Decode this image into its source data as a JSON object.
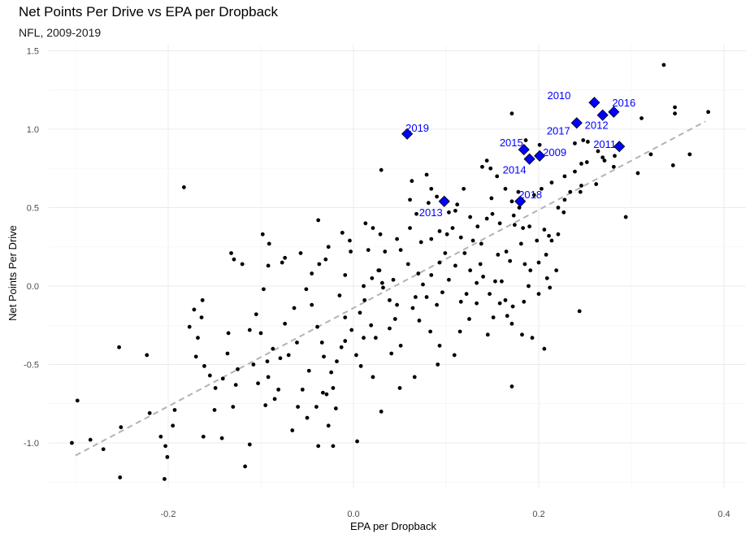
{
  "chart_data": {
    "type": "scatter",
    "title": "Net Points Per Drive vs EPA per Dropback",
    "subtitle": "NFL, 2009-2019",
    "xlabel": "EPA per Dropback",
    "ylabel": "Net Points Per Drive",
    "xlim": [
      -0.33,
      0.42
    ],
    "ylim": [
      -1.28,
      1.53
    ],
    "xticks": [
      -0.2,
      0.0,
      0.2,
      0.4
    ],
    "xtick_labels": [
      "-0.2",
      "0.0",
      "0.2",
      "0.4"
    ],
    "yticks": [
      -1.0,
      -0.5,
      0.0,
      0.5,
      1.0,
      1.5
    ],
    "ytick_labels": [
      "-1.0",
      "-0.5",
      "0.0",
      "0.5",
      "1.0",
      "1.5"
    ],
    "trend_line": {
      "x": [
        -0.3,
        0.38
      ],
      "y": [
        -1.08,
        1.05
      ],
      "style": "dashed",
      "color": "#b3b3b3"
    },
    "colors": {
      "points": "#000000",
      "highlight": "#0000ff",
      "grid": "#ebebeb"
    },
    "highlighted": [
      {
        "label": "2010",
        "x": 0.26,
        "y": 1.17
      },
      {
        "label": "2016",
        "x": 0.281,
        "y": 1.11
      },
      {
        "label": "2012",
        "x": 0.269,
        "y": 1.09
      },
      {
        "label": "2017",
        "x": 0.241,
        "y": 1.04
      },
      {
        "label": "2019",
        "x": 0.058,
        "y": 0.97
      },
      {
        "label": "2015",
        "x": 0.184,
        "y": 0.87
      },
      {
        "label": "2011",
        "x": 0.287,
        "y": 0.89
      },
      {
        "label": "2009",
        "x": 0.201,
        "y": 0.83
      },
      {
        "label": "2014",
        "x": 0.19,
        "y": 0.81
      },
      {
        "label": "2013",
        "x": 0.098,
        "y": 0.54
      },
      {
        "label": "2018",
        "x": 0.18,
        "y": 0.54
      }
    ],
    "points": [
      [
        0.335,
        1.41
      ],
      [
        0.383,
        1.11
      ],
      [
        0.347,
        1.14
      ],
      [
        0.347,
        1.1
      ],
      [
        0.311,
        1.07
      ],
      [
        0.171,
        1.1
      ],
      [
        0.201,
        0.9
      ],
      [
        0.186,
        0.93
      ],
      [
        0.239,
        0.91
      ],
      [
        0.248,
        0.93
      ],
      [
        0.253,
        0.92
      ],
      [
        0.264,
        0.86
      ],
      [
        0.282,
        0.83
      ],
      [
        0.321,
        0.84
      ],
      [
        0.363,
        0.84
      ],
      [
        0.345,
        0.77
      ],
      [
        0.307,
        0.72
      ],
      [
        0.281,
        0.76
      ],
      [
        0.269,
        0.82
      ],
      [
        0.246,
        0.78
      ],
      [
        0.239,
        0.73
      ],
      [
        0.228,
        0.7
      ],
      [
        0.246,
        0.64
      ],
      [
        0.245,
        0.6
      ],
      [
        0.214,
        0.66
      ],
      [
        0.203,
        0.62
      ],
      [
        0.195,
        0.58
      ],
      [
        0.178,
        0.6
      ],
      [
        0.164,
        0.62
      ],
      [
        0.171,
        0.54
      ],
      [
        0.179,
        0.5
      ],
      [
        0.173,
        0.45
      ],
      [
        0.174,
        0.39
      ],
      [
        0.183,
        0.37
      ],
      [
        0.19,
        0.38
      ],
      [
        0.206,
        0.36
      ],
      [
        0.221,
        0.33
      ],
      [
        0.211,
        0.32
      ],
      [
        0.198,
        0.29
      ],
      [
        0.181,
        0.27
      ],
      [
        0.165,
        0.22
      ],
      [
        0.156,
        0.2
      ],
      [
        0.169,
        0.16
      ],
      [
        0.185,
        0.14
      ],
      [
        0.208,
        0.2
      ],
      [
        0.219,
        0.1
      ],
      [
        0.191,
        0.1
      ],
      [
        0.209,
        0.05
      ],
      [
        0.212,
        -0.01
      ],
      [
        0.2,
        -0.05
      ],
      [
        0.184,
        -0.1
      ],
      [
        0.172,
        -0.13
      ],
      [
        0.166,
        -0.19
      ],
      [
        0.151,
        -0.2
      ],
      [
        0.171,
        -0.24
      ],
      [
        0.164,
        -0.09
      ],
      [
        0.182,
        -0.31
      ],
      [
        0.193,
        -0.33
      ],
      [
        0.206,
        -0.4
      ],
      [
        0.171,
        -0.64
      ],
      [
        0.133,
        -0.11
      ],
      [
        0.116,
        -0.1
      ],
      [
        0.125,
        -0.21
      ],
      [
        0.115,
        -0.29
      ],
      [
        0.109,
        -0.44
      ],
      [
        0.145,
        -0.31
      ],
      [
        0.16,
        0.03
      ],
      [
        0.14,
        0.06
      ],
      [
        0.126,
        0.1
      ],
      [
        0.138,
        0.27
      ],
      [
        0.144,
        0.43
      ],
      [
        0.149,
        0.56
      ],
      [
        0.155,
        0.7
      ],
      [
        0.148,
        0.75
      ],
      [
        0.144,
        0.8
      ],
      [
        0.139,
        0.76
      ],
      [
        0.119,
        0.62
      ],
      [
        0.112,
        0.52
      ],
      [
        0.103,
        0.47
      ],
      [
        0.101,
        0.33
      ],
      [
        0.099,
        0.21
      ],
      [
        0.093,
        0.15
      ],
      [
        0.084,
        0.07
      ],
      [
        0.075,
        0.01
      ],
      [
        0.067,
        -0.07
      ],
      [
        0.064,
        -0.14
      ],
      [
        0.071,
        -0.22
      ],
      [
        0.083,
        -0.29
      ],
      [
        0.093,
        -0.38
      ],
      [
        0.091,
        -0.5
      ],
      [
        0.066,
        -0.58
      ],
      [
        0.051,
        -0.38
      ],
      [
        0.045,
        -0.21
      ],
      [
        0.039,
        -0.09
      ],
      [
        0.031,
        0.02
      ],
      [
        0.028,
        0.1
      ],
      [
        0.034,
        0.22
      ],
      [
        0.047,
        0.3
      ],
      [
        0.061,
        0.37
      ],
      [
        0.063,
        0.67
      ],
      [
        0.079,
        0.71
      ],
      [
        0.084,
        0.62
      ],
      [
        0.013,
        0.4
      ],
      [
        0.021,
        0.37
      ],
      [
        0.029,
        0.33
      ],
      [
        0.016,
        0.23
      ],
      [
        0.027,
        0.1
      ],
      [
        0.02,
        0.05
      ],
      [
        0.012,
        -0.09
      ],
      [
        0.007,
        -0.17
      ],
      [
        0.019,
        -0.25
      ],
      [
        0.011,
        -0.33
      ],
      [
        0.003,
        -0.44
      ],
      [
        0.008,
        -0.51
      ],
      [
        0.021,
        -0.58
      ],
      [
        0.041,
        -0.43
      ],
      [
        0.05,
        -0.65
      ],
      [
        0.03,
        -0.8
      ],
      [
        0.03,
        0.74
      ],
      [
        -0.003,
        0.22
      ],
      [
        -0.009,
        0.07
      ],
      [
        -0.015,
        -0.06
      ],
      [
        -0.009,
        -0.2
      ],
      [
        -0.002,
        -0.28
      ],
      [
        -0.013,
        -0.39
      ],
      [
        -0.018,
        -0.48
      ],
      [
        -0.024,
        -0.55
      ],
      [
        -0.022,
        -0.65
      ],
      [
        -0.019,
        -0.78
      ],
      [
        -0.027,
        -0.89
      ],
      [
        -0.022,
        -1.02
      ],
      [
        0.004,
        -0.99
      ],
      [
        -0.032,
        -0.45
      ],
      [
        -0.034,
        -0.36
      ],
      [
        -0.039,
        -0.26
      ],
      [
        -0.045,
        -0.12
      ],
      [
        -0.051,
        -0.02
      ],
      [
        -0.045,
        0.08
      ],
      [
        -0.037,
        0.14
      ],
      [
        -0.027,
        0.25
      ],
      [
        -0.038,
        0.42
      ],
      [
        -0.048,
        -0.54
      ],
      [
        -0.055,
        -0.66
      ],
      [
        -0.06,
        -0.77
      ],
      [
        -0.066,
        -0.92
      ],
      [
        -0.05,
        -0.84
      ],
      [
        -0.04,
        -0.77
      ],
      [
        -0.033,
        -0.68
      ],
      [
        -0.029,
        -0.69
      ],
      [
        -0.038,
        -1.02
      ],
      [
        -0.057,
        0.21
      ],
      [
        -0.074,
        0.18
      ],
      [
        -0.092,
        0.13
      ],
      [
        -0.097,
        -0.02
      ],
      [
        -0.105,
        -0.18
      ],
      [
        -0.1,
        -0.3
      ],
      [
        -0.087,
        -0.4
      ],
      [
        -0.093,
        -0.48
      ],
      [
        -0.092,
        -0.58
      ],
      [
        -0.081,
        -0.66
      ],
      [
        -0.085,
        -0.72
      ],
      [
        -0.095,
        -0.76
      ],
      [
        -0.103,
        -0.62
      ],
      [
        -0.108,
        -0.5
      ],
      [
        -0.112,
        -0.28
      ],
      [
        -0.098,
        0.33
      ],
      [
        -0.091,
        0.27
      ],
      [
        -0.077,
        0.15
      ],
      [
        -0.117,
        -1.15
      ],
      [
        -0.127,
        -0.63
      ],
      [
        -0.141,
        -0.59
      ],
      [
        -0.125,
        -0.53
      ],
      [
        -0.136,
        -0.43
      ],
      [
        -0.129,
        0.17
      ],
      [
        -0.132,
        0.21
      ],
      [
        -0.12,
        0.14
      ],
      [
        -0.135,
        -0.3
      ],
      [
        -0.149,
        -0.65
      ],
      [
        -0.155,
        -0.57
      ],
      [
        -0.161,
        -0.51
      ],
      [
        -0.168,
        -0.33
      ],
      [
        -0.164,
        -0.2
      ],
      [
        -0.172,
        -0.15
      ],
      [
        -0.163,
        -0.09
      ],
      [
        -0.15,
        -0.79
      ],
      [
        -0.142,
        -0.97
      ],
      [
        -0.13,
        -0.77
      ],
      [
        -0.183,
        0.63
      ],
      [
        -0.177,
        -0.26
      ],
      [
        -0.17,
        -0.45
      ],
      [
        -0.193,
        -0.79
      ],
      [
        -0.203,
        -1.02
      ],
      [
        -0.195,
        -0.89
      ],
      [
        -0.208,
        -0.96
      ],
      [
        -0.223,
        -0.44
      ],
      [
        -0.22,
        -0.81
      ],
      [
        -0.253,
        -0.39
      ],
      [
        -0.251,
        -0.9
      ],
      [
        -0.27,
        -1.04
      ],
      [
        -0.284,
        -0.98
      ],
      [
        -0.304,
        -1.0
      ],
      [
        -0.298,
        -0.73
      ],
      [
        -0.201,
        -1.09
      ],
      [
        -0.252,
        -1.22
      ],
      [
        -0.204,
        -1.23
      ],
      [
        -0.112,
        -1.01
      ],
      [
        -0.162,
        -0.96
      ],
      [
        0.051,
        0.23
      ],
      [
        0.059,
        0.14
      ],
      [
        0.073,
        0.28
      ],
      [
        0.084,
        0.3
      ],
      [
        0.093,
        0.35
      ],
      [
        0.107,
        0.37
      ],
      [
        0.116,
        0.31
      ],
      [
        0.12,
        0.21
      ],
      [
        0.11,
        0.13
      ],
      [
        0.103,
        0.04
      ],
      [
        0.096,
        -0.04
      ],
      [
        0.09,
        -0.12
      ],
      [
        0.079,
        -0.07
      ],
      [
        0.07,
        0.08
      ],
      [
        0.133,
        0.02
      ],
      [
        0.122,
        -0.05
      ],
      [
        0.147,
        -0.05
      ],
      [
        0.153,
        0.03
      ],
      [
        0.158,
        -0.11
      ],
      [
        0.137,
        0.14
      ],
      [
        0.129,
        0.29
      ],
      [
        0.11,
        0.48
      ],
      [
        0.126,
        0.44
      ],
      [
        0.134,
        0.38
      ],
      [
        0.158,
        0.4
      ],
      [
        0.15,
        0.46
      ],
      [
        0.061,
        0.55
      ],
      [
        0.068,
        0.46
      ],
      [
        0.081,
        0.53
      ],
      [
        0.09,
        0.57
      ],
      [
        -0.004,
        0.29
      ],
      [
        -0.012,
        0.34
      ],
      [
        -0.03,
        0.17
      ],
      [
        -0.064,
        -0.14
      ],
      [
        -0.074,
        -0.24
      ],
      [
        -0.061,
        -0.36
      ],
      [
        -0.07,
        -0.44
      ],
      [
        -0.079,
        -0.46
      ],
      [
        0.011,
        0.0
      ],
      [
        0.032,
        -0.01
      ],
      [
        0.043,
        0.04
      ],
      [
        0.047,
        -0.12
      ],
      [
        0.039,
        -0.27
      ],
      [
        0.024,
        -0.33
      ],
      [
        -0.009,
        -0.35
      ],
      [
        0.228,
        0.55
      ],
      [
        0.234,
        0.6
      ],
      [
        0.221,
        0.5
      ],
      [
        0.214,
        0.29
      ],
      [
        0.2,
        0.15
      ],
      [
        0.189,
        0.0
      ],
      [
        0.252,
        0.79
      ],
      [
        0.271,
        0.8
      ],
      [
        0.294,
        0.44
      ],
      [
        0.227,
        0.47
      ],
      [
        0.262,
        0.65
      ],
      [
        0.244,
        -0.16
      ]
    ]
  }
}
